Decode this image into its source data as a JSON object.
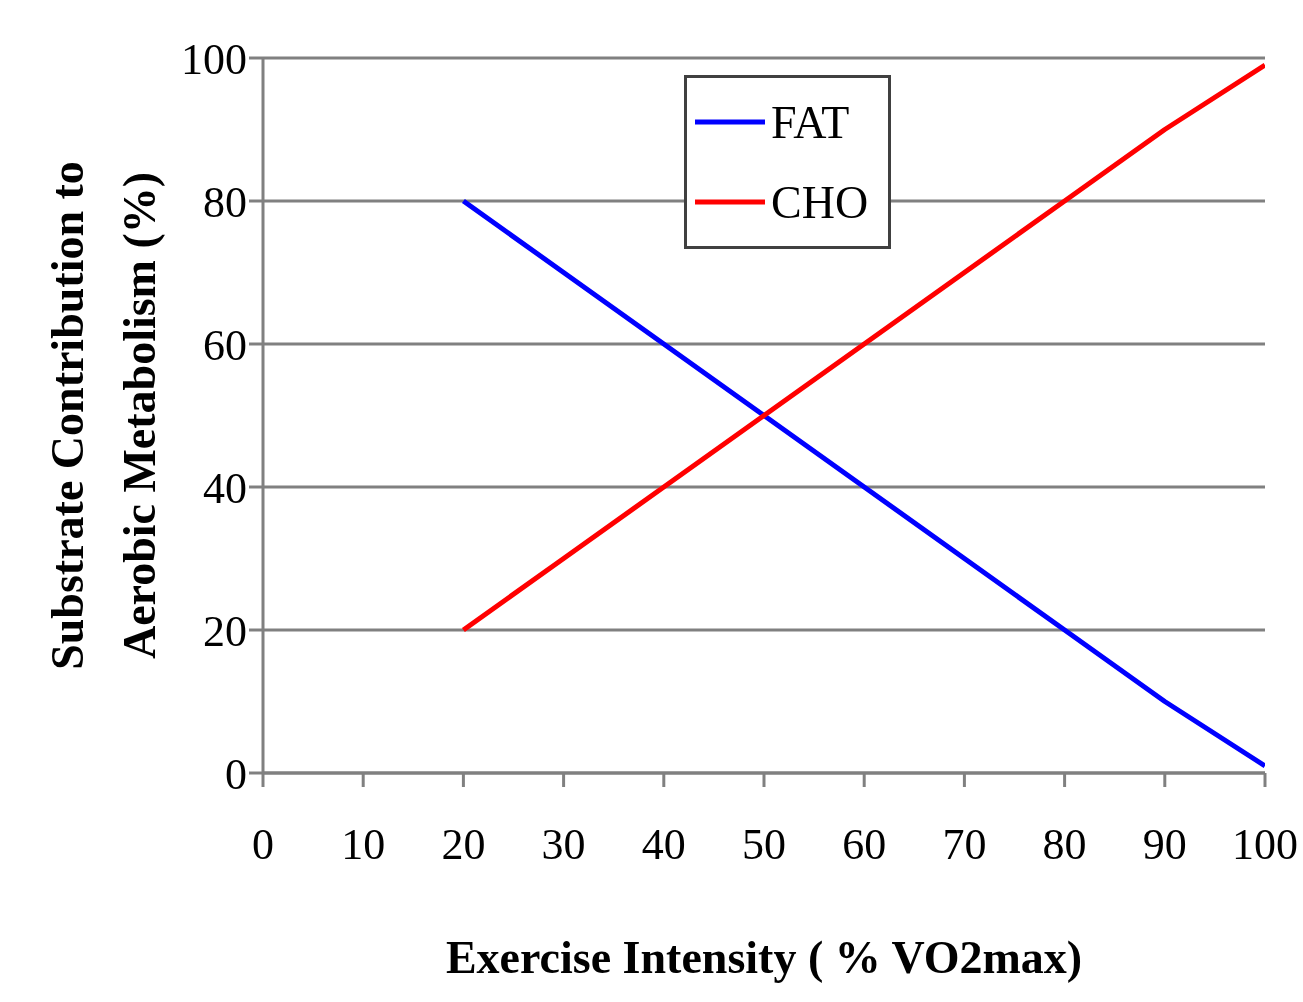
{
  "chart_data": {
    "type": "line",
    "xlabel": "Exercise Intensity ( % VO2max)",
    "ylabel": "Substrate Contribution to\nAerobic Metabolism (%)",
    "x": [
      20,
      30,
      40,
      50,
      60,
      70,
      80,
      90,
      100
    ],
    "series": [
      {
        "name": "FAT",
        "color": "#0000ff",
        "values": [
          80,
          70,
          60,
          50,
          40,
          30,
          20,
          10,
          1
        ]
      },
      {
        "name": "CHO",
        "color": "#ff0000",
        "values": [
          20,
          30,
          40,
          50,
          60,
          70,
          80,
          90,
          99
        ]
      }
    ],
    "xlim": [
      0,
      100
    ],
    "xticks": [
      0,
      10,
      20,
      30,
      40,
      50,
      60,
      70,
      80,
      90,
      100
    ],
    "ylim": [
      0,
      100
    ],
    "yticks": [
      0,
      20,
      40,
      60,
      80,
      100
    ],
    "grid": "y",
    "legend": "top",
    "marker": "none",
    "line_style": "solid"
  }
}
